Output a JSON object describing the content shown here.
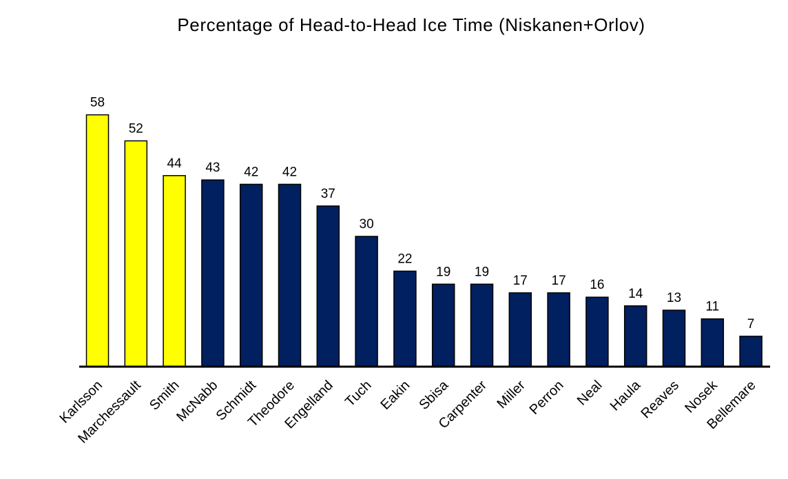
{
  "chart_data": {
    "type": "bar",
    "title": "Percentage of Head-to-Head Ice Time (Niskanen+Orlov)",
    "xlabel": "",
    "ylabel": "",
    "ylim": [
      0,
      60
    ],
    "grid": false,
    "categories": [
      "Karlsson",
      "Marchessault",
      "Smith",
      "McNabb",
      "Schmidt",
      "Theodore",
      "Engelland",
      "Tuch",
      "Eakin",
      "Sbisa",
      "Carpenter",
      "Miller",
      "Perron",
      "Neal",
      "Haula",
      "Reaves",
      "Nosek",
      "Bellemare"
    ],
    "values": [
      58,
      52,
      44,
      43,
      42,
      42,
      37,
      30,
      22,
      19,
      19,
      17,
      17,
      16,
      14,
      13,
      11,
      7
    ],
    "value_labels": [
      "58",
      "52",
      "44",
      "43",
      "42",
      "42",
      "37",
      "30",
      "22",
      "19",
      "19",
      "17",
      "17",
      "16",
      "14",
      "13",
      "11",
      "7"
    ],
    "bar_colors": [
      "#FFFF00",
      "#FFFF00",
      "#FFFF00",
      "#002060",
      "#002060",
      "#002060",
      "#002060",
      "#002060",
      "#002060",
      "#002060",
      "#002060",
      "#002060",
      "#002060",
      "#002060",
      "#002060",
      "#002060",
      "#002060",
      "#002060"
    ],
    "bar_outline_color": "#000000",
    "axis_color": "#000000"
  }
}
